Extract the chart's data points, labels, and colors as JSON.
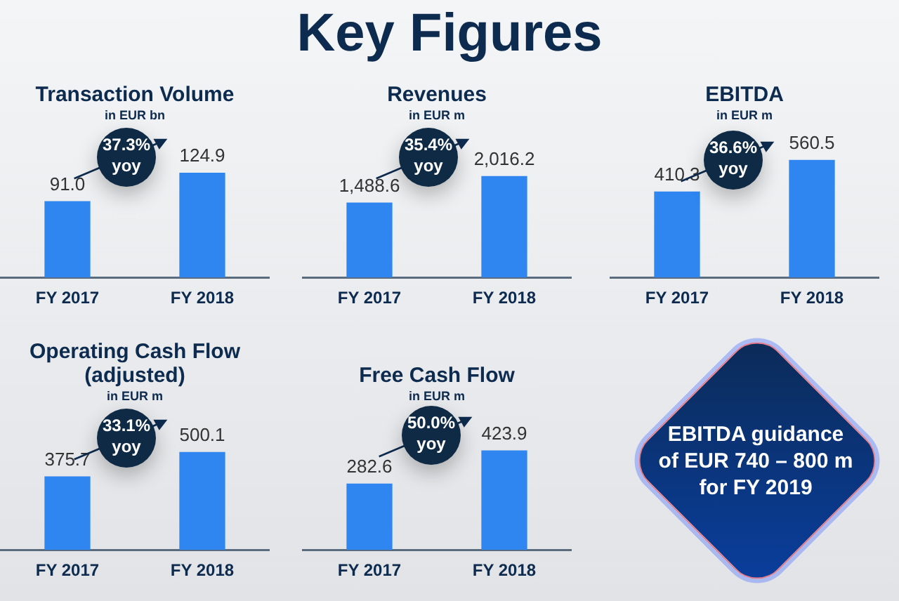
{
  "chart_data": [
    {
      "type": "other",
      "title": "Key Figures"
    },
    {
      "type": "bar",
      "title": "Transaction Volume",
      "subtitle": "in EUR bn",
      "categories": [
        "FY 2017",
        "FY 2018"
      ],
      "values": [
        91.0,
        124.9
      ],
      "value_labels": [
        "91.0",
        "124.9"
      ],
      "color": "#2f86f0",
      "annotations": [
        "37.3% yoy"
      ]
    },
    {
      "type": "bar",
      "title": "Revenues",
      "subtitle": "in EUR m",
      "categories": [
        "FY 2017",
        "FY 2018"
      ],
      "values": [
        1488.6,
        2016.2
      ],
      "value_labels": [
        "1,488.6",
        "2,016.2"
      ],
      "color": "#2f86f0",
      "annotations": [
        "35.4% yoy"
      ]
    },
    {
      "type": "bar",
      "title": "EBITDA",
      "subtitle": "in EUR m",
      "categories": [
        "FY 2017",
        "FY 2018"
      ],
      "values": [
        410.3,
        560.5
      ],
      "value_labels": [
        "410.3",
        "560.5"
      ],
      "color": "#2f86f0",
      "annotations": [
        "36.6% yoy"
      ]
    },
    {
      "type": "bar",
      "title": "Operating Cash Flow (adjusted)",
      "subtitle": "in EUR m",
      "categories": [
        "FY 2017",
        "FY 2018"
      ],
      "values": [
        375.7,
        500.1
      ],
      "value_labels": [
        "375.7",
        "500.1"
      ],
      "color": "#2f86f0",
      "annotations": [
        "33.1% yoy"
      ]
    },
    {
      "type": "bar",
      "title": "Free Cash Flow",
      "subtitle": "in EUR m",
      "categories": [
        "FY 2017",
        "FY 2018"
      ],
      "values": [
        282.6,
        423.9
      ],
      "value_labels": [
        "282.6",
        "423.9"
      ],
      "color": "#2f86f0",
      "annotations": [
        "50.0% yoy"
      ]
    },
    {
      "type": "other",
      "annotations": [
        "EBITDA guidance of EUR 740 – 800 m for FY 2019"
      ]
    }
  ]
}
